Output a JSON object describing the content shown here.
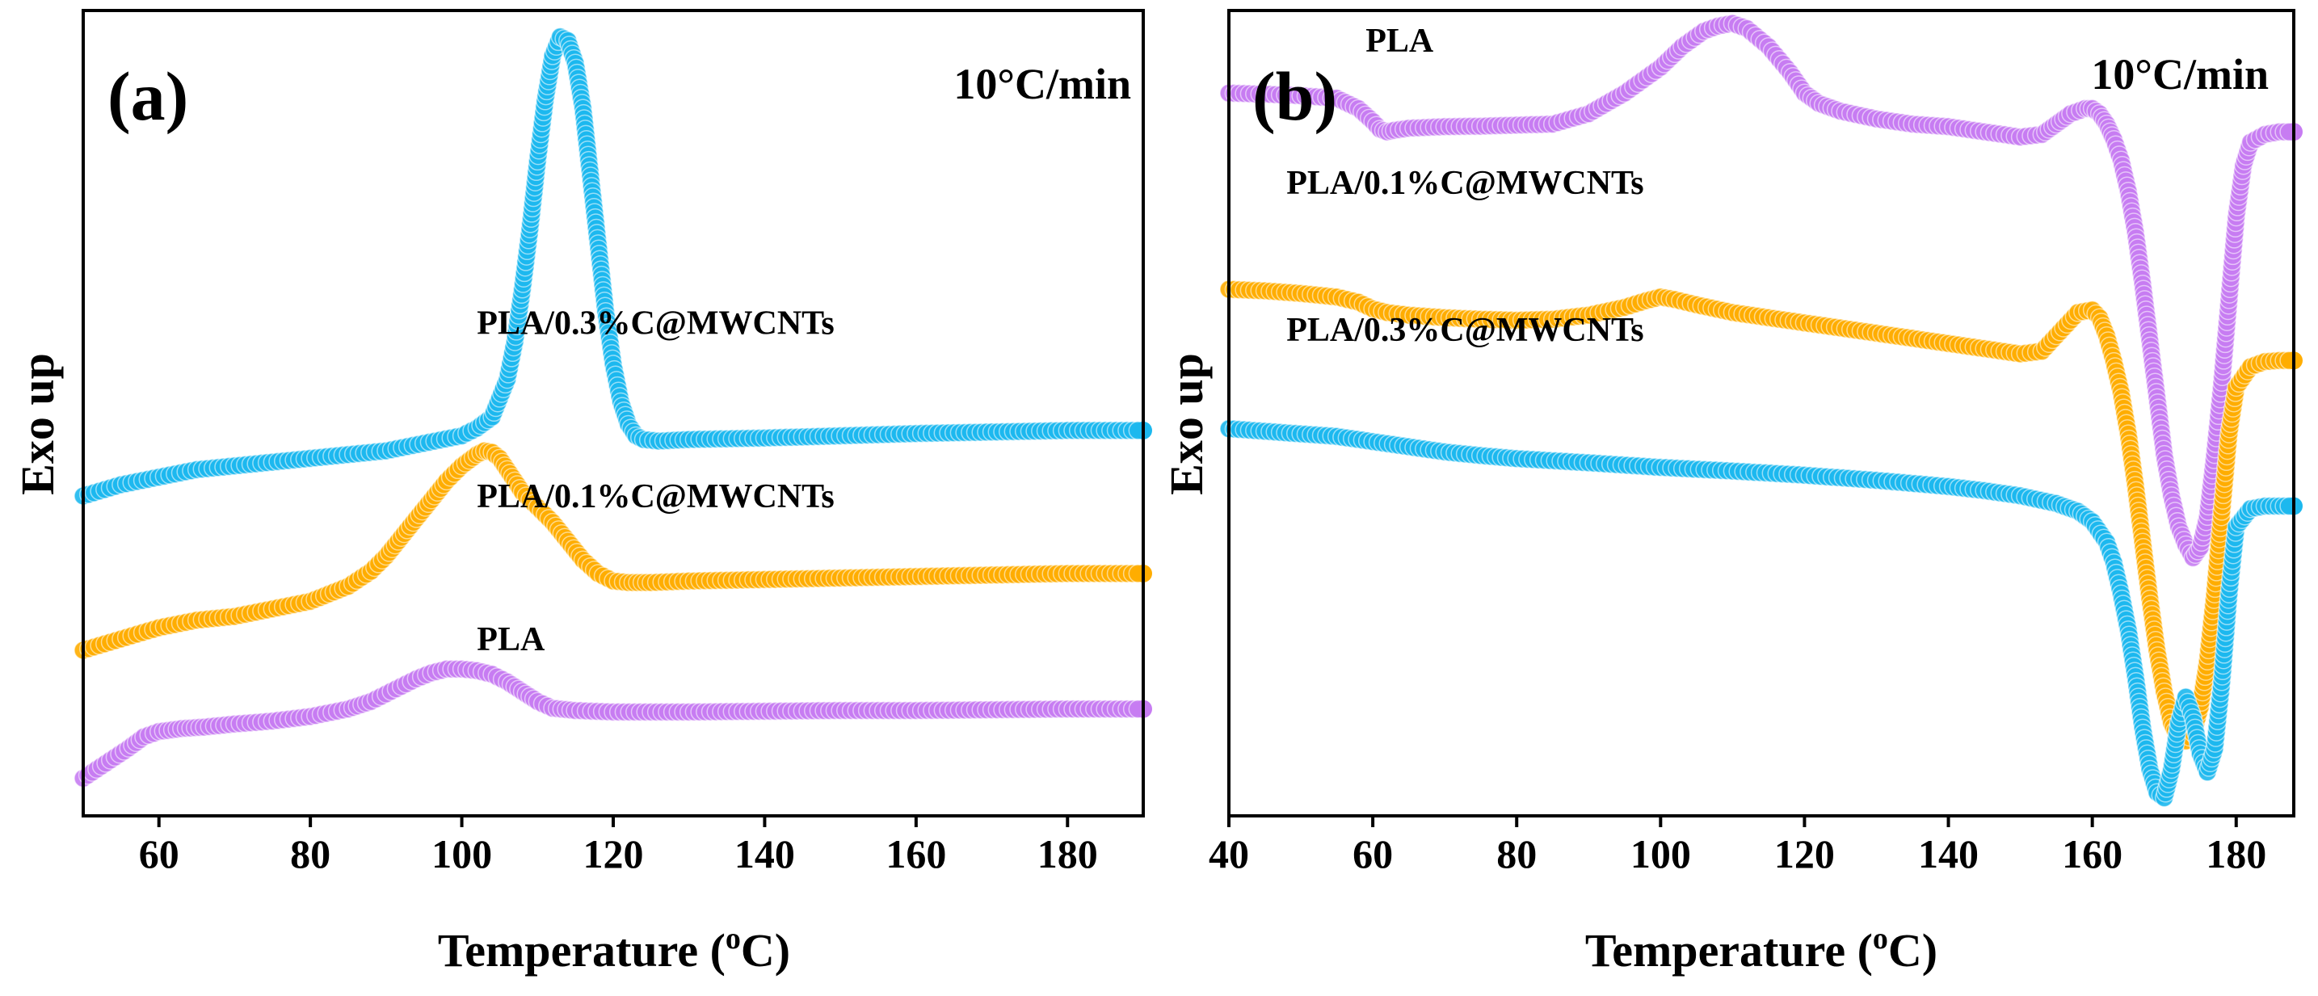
{
  "colors": {
    "PLA": "#c77cf2",
    "PLA/0.1%C@MWCNTs": "#ffad00",
    "PLA/0.3%C@MWCNTs": "#1cb8ee",
    "axis": "#000000"
  },
  "chart_data": [
    {
      "type": "scatter",
      "panel": "(a)",
      "rate_label": "10°C/min",
      "xlabel": "Temperature (oC)",
      "xlabel_parts": {
        "before": "Temperature (",
        "sup": "o",
        "after": "C)"
      },
      "ylabel": "Exo up",
      "xlim": [
        50,
        190
      ],
      "ylim": [
        -0.5,
        10.2
      ],
      "xticks": [
        "60",
        "80",
        "100",
        "120",
        "140",
        "160",
        "180"
      ],
      "xtick_values": [
        60,
        80,
        100,
        120,
        140,
        160,
        180
      ],
      "yticks": [],
      "series": [
        {
          "name": "PLA/0.3%C@MWCNTs",
          "label_text": "PLA/0.3%C@MWCNTs",
          "label_anchor": [
            102,
            5.9
          ],
          "x": [
            50,
            55,
            60,
            65,
            70,
            75,
            80,
            85,
            90,
            95,
            100,
            102,
            104,
            106,
            107,
            108,
            109,
            110,
            111,
            112,
            113,
            114,
            115,
            116,
            117,
            118,
            119,
            120,
            121,
            122,
            123,
            124,
            126,
            130,
            140,
            150,
            160,
            170,
            180,
            190
          ],
          "y": [
            3.75,
            3.9,
            4.0,
            4.1,
            4.15,
            4.2,
            4.25,
            4.3,
            4.35,
            4.45,
            4.55,
            4.65,
            4.8,
            5.3,
            5.8,
            6.5,
            7.3,
            8.2,
            9.0,
            9.6,
            9.85,
            9.8,
            9.5,
            8.9,
            8.0,
            7.1,
            6.2,
            5.5,
            5.0,
            4.7,
            4.55,
            4.5,
            4.48,
            4.5,
            4.52,
            4.55,
            4.58,
            4.6,
            4.62,
            4.62
          ]
        },
        {
          "name": "PLA/0.1%C@MWCNTs",
          "label_text": "PLA/0.1%C@MWCNTs",
          "label_anchor": [
            102,
            3.6
          ],
          "x": [
            50,
            55,
            60,
            65,
            70,
            75,
            80,
            85,
            88,
            90,
            92,
            94,
            96,
            98,
            100,
            102,
            103,
            104,
            105,
            106,
            107,
            108,
            110,
            112,
            114,
            116,
            118,
            120,
            122,
            125,
            130,
            140,
            150,
            160,
            170,
            180,
            190
          ],
          "y": [
            1.7,
            1.85,
            2.0,
            2.1,
            2.15,
            2.25,
            2.35,
            2.55,
            2.75,
            2.95,
            3.2,
            3.45,
            3.7,
            3.95,
            4.15,
            4.3,
            4.35,
            4.33,
            4.25,
            4.1,
            3.95,
            3.8,
            3.6,
            3.4,
            3.15,
            2.9,
            2.72,
            2.62,
            2.6,
            2.6,
            2.62,
            2.64,
            2.66,
            2.68,
            2.7,
            2.72,
            2.72
          ]
        },
        {
          "name": "PLA",
          "label_text": "PLA",
          "label_anchor": [
            102,
            1.7
          ],
          "x": [
            50,
            53,
            56,
            58,
            60,
            63,
            66,
            70,
            75,
            80,
            85,
            88,
            90,
            92,
            94,
            96,
            98,
            100,
            102,
            104,
            106,
            108,
            110,
            112,
            115,
            120,
            130,
            140,
            150,
            160,
            170,
            180,
            190
          ],
          "y": [
            0.0,
            0.2,
            0.4,
            0.55,
            0.62,
            0.66,
            0.68,
            0.72,
            0.76,
            0.82,
            0.92,
            1.02,
            1.12,
            1.22,
            1.32,
            1.4,
            1.45,
            1.45,
            1.43,
            1.38,
            1.28,
            1.15,
            1.02,
            0.93,
            0.9,
            0.88,
            0.88,
            0.89,
            0.9,
            0.9,
            0.91,
            0.92,
            0.92
          ]
        }
      ]
    },
    {
      "type": "scatter",
      "panel": "(b)",
      "rate_label": "10°C/min",
      "xlabel": "Temperature (oC)",
      "xlabel_parts": {
        "before": "Temperature (",
        "sup": "o",
        "after": "C)"
      },
      "ylabel": "Exo up",
      "xlim": [
        40,
        188
      ],
      "ylim": [
        -10.2,
        5.4
      ],
      "xticks": [
        "40",
        "60",
        "80",
        "100",
        "120",
        "140",
        "160",
        "180"
      ],
      "xtick_values": [
        40,
        60,
        80,
        100,
        120,
        140,
        160,
        180
      ],
      "yticks": [],
      "series": [
        {
          "name": "PLA",
          "label_text": "PLA",
          "label_anchor": [
            59,
            4.6
          ],
          "x": [
            40,
            45,
            50,
            55,
            58,
            60,
            61,
            62,
            63,
            65,
            70,
            75,
            80,
            85,
            90,
            95,
            100,
            103,
            106,
            108,
            110,
            112,
            115,
            118,
            120,
            122,
            125,
            130,
            135,
            140,
            145,
            150,
            153,
            155,
            157,
            159,
            160,
            161,
            162,
            163,
            164,
            165,
            166,
            167,
            168,
            169,
            170,
            171,
            172,
            173,
            174,
            175,
            176,
            177,
            178,
            179,
            180,
            181,
            182,
            184,
            186,
            188
          ],
          "y": [
            3.8,
            3.78,
            3.75,
            3.7,
            3.5,
            3.25,
            3.1,
            3.05,
            3.08,
            3.12,
            3.15,
            3.16,
            3.18,
            3.2,
            3.4,
            3.8,
            4.3,
            4.7,
            5.0,
            5.1,
            5.15,
            5.05,
            4.7,
            4.2,
            3.8,
            3.6,
            3.45,
            3.3,
            3.2,
            3.15,
            3.05,
            2.95,
            3.0,
            3.2,
            3.4,
            3.5,
            3.5,
            3.4,
            3.2,
            2.9,
            2.5,
            1.9,
            1.1,
            0.1,
            -1.0,
            -2.1,
            -3.2,
            -4.0,
            -4.6,
            -4.95,
            -5.2,
            -5.0,
            -4.4,
            -3.2,
            -1.8,
            -0.2,
            1.4,
            2.4,
            2.85,
            3.0,
            3.05,
            3.05
          ]
        },
        {
          "name": "PLA/0.1%C@MWCNTs",
          "label_text": "PLA/0.1%C@MWCNTs",
          "label_anchor": [
            48,
            1.85
          ],
          "x": [
            40,
            45,
            50,
            55,
            58,
            60,
            62,
            65,
            70,
            75,
            80,
            85,
            90,
            95,
            98,
            100,
            102,
            105,
            110,
            115,
            120,
            125,
            130,
            135,
            140,
            145,
            150,
            153,
            155,
            157,
            158,
            160,
            161,
            162,
            163,
            164,
            165,
            166,
            167,
            168,
            169,
            170,
            171,
            172,
            173,
            174,
            175,
            176,
            177,
            178,
            179,
            180,
            182,
            184,
            186,
            188
          ],
          "y": [
            0.0,
            -0.03,
            -0.08,
            -0.15,
            -0.25,
            -0.38,
            -0.45,
            -0.5,
            -0.55,
            -0.58,
            -0.6,
            -0.58,
            -0.5,
            -0.35,
            -0.22,
            -0.15,
            -0.2,
            -0.3,
            -0.45,
            -0.55,
            -0.65,
            -0.75,
            -0.85,
            -0.95,
            -1.05,
            -1.15,
            -1.25,
            -1.2,
            -0.9,
            -0.6,
            -0.45,
            -0.4,
            -0.55,
            -0.9,
            -1.4,
            -2.0,
            -2.8,
            -3.8,
            -4.9,
            -6.0,
            -7.0,
            -7.8,
            -8.4,
            -8.7,
            -8.75,
            -8.6,
            -8.1,
            -7.2,
            -5.9,
            -4.3,
            -2.8,
            -1.9,
            -1.5,
            -1.4,
            -1.38,
            -1.38
          ]
        },
        {
          "name": "PLA/0.3%C@MWCNTs",
          "label_text": "PLA/0.3%C@MWCNTs",
          "label_anchor": [
            48,
            -1.0
          ],
          "x": [
            40,
            45,
            50,
            55,
            60,
            65,
            70,
            75,
            80,
            90,
            100,
            110,
            120,
            130,
            140,
            145,
            150,
            155,
            158,
            160,
            162,
            163,
            164,
            165,
            166,
            167,
            168,
            169,
            170,
            171,
            172,
            173,
            174,
            175,
            176,
            177,
            178,
            179,
            180,
            182,
            184,
            186,
            188
          ],
          "y": [
            -2.7,
            -2.75,
            -2.8,
            -2.85,
            -2.95,
            -3.05,
            -3.15,
            -3.22,
            -3.28,
            -3.36,
            -3.45,
            -3.52,
            -3.6,
            -3.7,
            -3.82,
            -3.9,
            -4.0,
            -4.15,
            -4.3,
            -4.5,
            -4.9,
            -5.3,
            -5.9,
            -6.6,
            -7.5,
            -8.5,
            -9.3,
            -9.75,
            -9.85,
            -9.3,
            -8.4,
            -7.9,
            -8.3,
            -9.0,
            -9.35,
            -8.9,
            -7.6,
            -5.9,
            -4.6,
            -4.25,
            -4.2,
            -4.2,
            -4.2
          ]
        }
      ]
    }
  ]
}
